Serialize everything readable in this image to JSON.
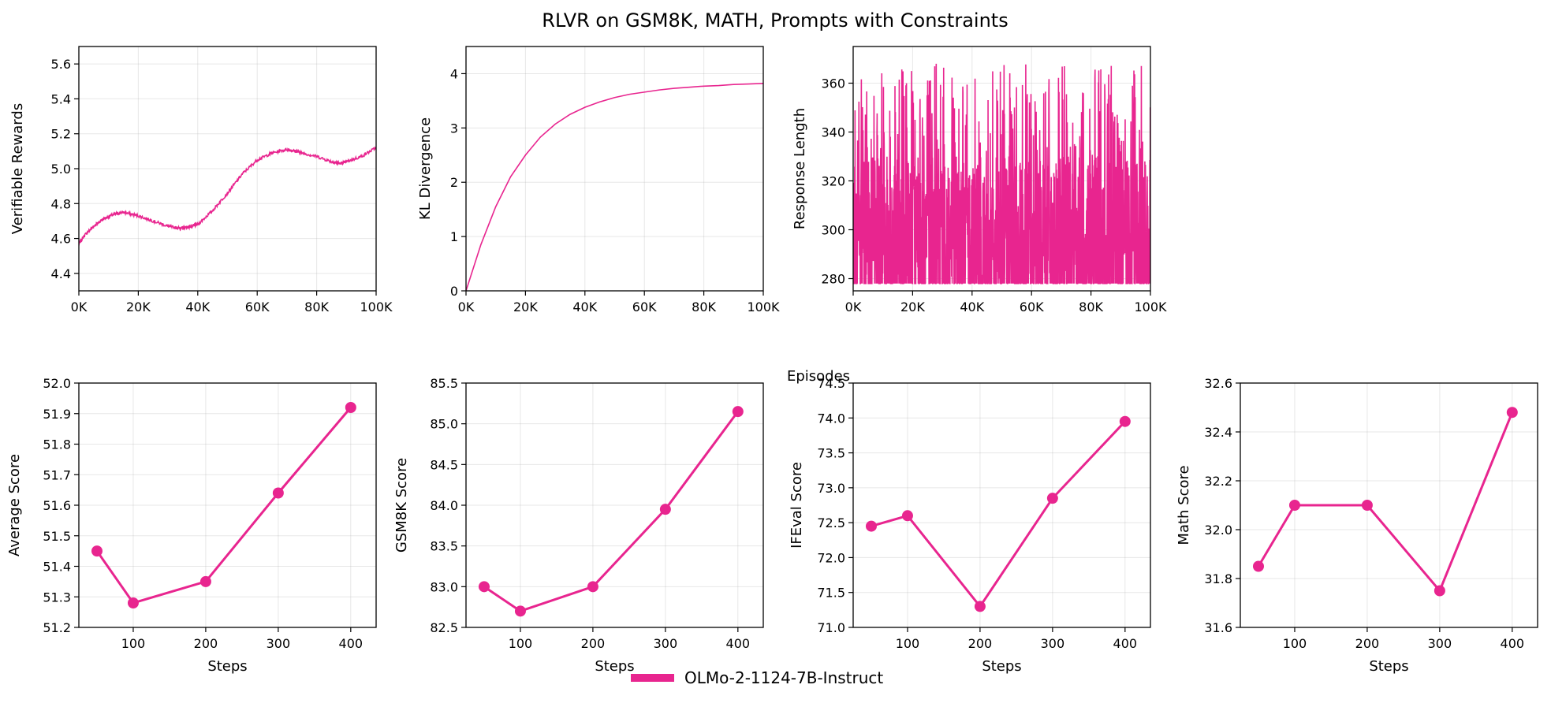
{
  "figure": {
    "title": "RLVR on GSM8K, MATH, Prompts with Constraints",
    "shared_xlabel": "Episodes",
    "legend_label": "OLMo-2-1124-7B-Instruct",
    "color": "#e8258f"
  },
  "chart_data": [
    {
      "type": "line",
      "ylabel": "Verifiable Rewards",
      "xlim": [
        0,
        100000
      ],
      "ylim": [
        4.3,
        5.7
      ],
      "x_ticks": [
        0,
        20000,
        40000,
        60000,
        80000,
        100000
      ],
      "x_tick_labels": [
        "0K",
        "20K",
        "40K",
        "60K",
        "80K",
        "100K"
      ],
      "y_ticks": [
        4.4,
        4.6,
        4.8,
        5.0,
        5.2,
        5.4,
        5.6
      ],
      "y_tick_labels": [
        "4.4",
        "4.6",
        "4.8",
        "5.0",
        "5.2",
        "5.4",
        "5.6"
      ],
      "grid": true,
      "series": [
        {
          "x": [
            0,
            2000,
            5000,
            8000,
            12000,
            15000,
            20000,
            25000,
            30000,
            33000,
            35000,
            38000,
            40000,
            45000,
            50000,
            55000,
            60000,
            65000,
            70000,
            73000,
            75000,
            80000,
            85000,
            88000,
            90000,
            95000,
            100000
          ],
          "values": [
            4.57,
            4.62,
            4.67,
            4.71,
            4.74,
            4.75,
            4.73,
            4.7,
            4.67,
            4.66,
            4.66,
            4.67,
            4.68,
            4.76,
            4.86,
            4.97,
            5.05,
            5.09,
            5.11,
            5.1,
            5.09,
            5.07,
            5.04,
            5.03,
            5.04,
            5.07,
            5.12
          ]
        }
      ]
    },
    {
      "type": "line",
      "ylabel": "KL Divergence",
      "xlim": [
        0,
        100000
      ],
      "ylim": [
        0,
        4.5
      ],
      "x_ticks": [
        0,
        20000,
        40000,
        60000,
        80000,
        100000
      ],
      "x_tick_labels": [
        "0K",
        "20K",
        "40K",
        "60K",
        "80K",
        "100K"
      ],
      "y_ticks": [
        0,
        1,
        2,
        3,
        4
      ],
      "y_tick_labels": [
        "0",
        "1",
        "2",
        "3",
        "4"
      ],
      "grid": true,
      "series": [
        {
          "x": [
            0,
            5000,
            10000,
            15000,
            20000,
            25000,
            30000,
            35000,
            40000,
            45000,
            50000,
            55000,
            60000,
            65000,
            70000,
            75000,
            80000,
            85000,
            90000,
            95000,
            100000
          ],
          "values": [
            0.0,
            0.85,
            1.55,
            2.1,
            2.5,
            2.83,
            3.07,
            3.25,
            3.38,
            3.48,
            3.56,
            3.62,
            3.66,
            3.7,
            3.73,
            3.75,
            3.77,
            3.78,
            3.8,
            3.81,
            3.82
          ]
        }
      ]
    },
    {
      "type": "line",
      "ylabel": "Response Length",
      "xlim": [
        0,
        100000
      ],
      "ylim": [
        275,
        375
      ],
      "x_ticks": [
        0,
        20000,
        40000,
        60000,
        80000,
        100000
      ],
      "x_tick_labels": [
        "0K",
        "20K",
        "40K",
        "60K",
        "80K",
        "100K"
      ],
      "y_ticks": [
        280,
        300,
        320,
        340,
        360
      ],
      "y_tick_labels": [
        "280",
        "300",
        "320",
        "340",
        "360"
      ],
      "grid": true,
      "series": [
        {
          "x_range": [
            0,
            100000
          ],
          "value_range": [
            278,
            368
          ],
          "typical_band": [
            280,
            330
          ]
        }
      ]
    },
    {
      "type": "line",
      "ylabel": "Average Score",
      "xlabel": "Steps",
      "xlim": [
        25,
        435
      ],
      "ylim": [
        51.2,
        52.0
      ],
      "x_ticks": [
        100,
        200,
        300,
        400
      ],
      "x_tick_labels": [
        "100",
        "200",
        "300",
        "400"
      ],
      "y_ticks": [
        51.2,
        51.3,
        51.4,
        51.5,
        51.6,
        51.7,
        51.8,
        51.9,
        52.0
      ],
      "y_tick_labels": [
        "51.2",
        "51.3",
        "51.4",
        "51.5",
        "51.6",
        "51.7",
        "51.8",
        "51.9",
        "52.0"
      ],
      "grid": true,
      "series": [
        {
          "x": [
            50,
            100,
            200,
            300,
            400
          ],
          "values": [
            51.45,
            51.28,
            51.35,
            51.64,
            51.92
          ]
        }
      ]
    },
    {
      "type": "line",
      "ylabel": "GSM8K Score",
      "xlabel": "Steps",
      "xlim": [
        25,
        435
      ],
      "ylim": [
        82.5,
        85.5
      ],
      "x_ticks": [
        100,
        200,
        300,
        400
      ],
      "x_tick_labels": [
        "100",
        "200",
        "300",
        "400"
      ],
      "y_ticks": [
        82.5,
        83.0,
        83.5,
        84.0,
        84.5,
        85.0,
        85.5
      ],
      "y_tick_labels": [
        "82.5",
        "83.0",
        "83.5",
        "84.0",
        "84.5",
        "85.0",
        "85.5"
      ],
      "grid": true,
      "series": [
        {
          "x": [
            50,
            100,
            200,
            300,
            400
          ],
          "values": [
            83.0,
            82.7,
            83.0,
            83.95,
            85.15
          ]
        }
      ]
    },
    {
      "type": "line",
      "ylabel": "IFEval Score",
      "xlabel": "Steps",
      "xlim": [
        25,
        435
      ],
      "ylim": [
        71.0,
        74.5
      ],
      "x_ticks": [
        100,
        200,
        300,
        400
      ],
      "x_tick_labels": [
        "100",
        "200",
        "300",
        "400"
      ],
      "y_ticks": [
        71.0,
        71.5,
        72.0,
        72.5,
        73.0,
        73.5,
        74.0,
        74.5
      ],
      "y_tick_labels": [
        "71.0",
        "71.5",
        "72.0",
        "72.5",
        "73.0",
        "73.5",
        "74.0",
        "74.5"
      ],
      "grid": true,
      "series": [
        {
          "x": [
            50,
            100,
            200,
            300,
            400
          ],
          "values": [
            72.45,
            72.6,
            71.3,
            72.85,
            73.95
          ]
        }
      ]
    },
    {
      "type": "line",
      "ylabel": "Math Score",
      "xlabel": "Steps",
      "xlim": [
        25,
        435
      ],
      "ylim": [
        31.6,
        32.6
      ],
      "x_ticks": [
        100,
        200,
        300,
        400
      ],
      "x_tick_labels": [
        "100",
        "200",
        "300",
        "400"
      ],
      "y_ticks": [
        31.6,
        31.8,
        32.0,
        32.2,
        32.4,
        32.6
      ],
      "y_tick_labels": [
        "31.6",
        "31.8",
        "32.0",
        "32.2",
        "32.4",
        "32.6"
      ],
      "grid": true,
      "series": [
        {
          "x": [
            50,
            100,
            200,
            300,
            400
          ],
          "values": [
            31.85,
            32.1,
            32.1,
            31.75,
            32.48
          ]
        }
      ]
    }
  ]
}
